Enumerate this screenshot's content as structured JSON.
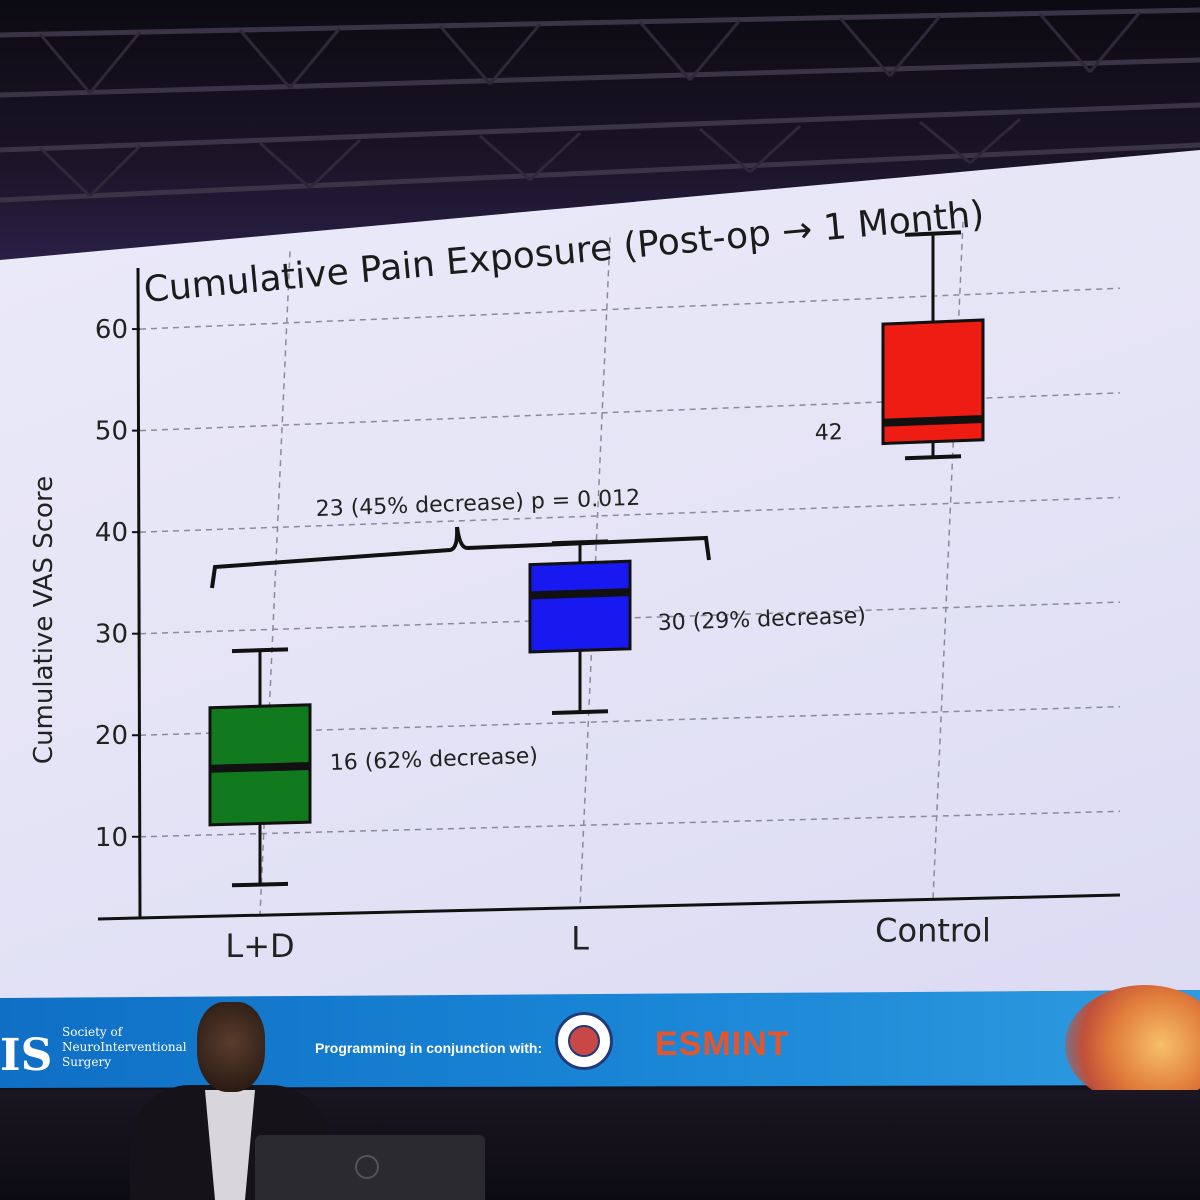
{
  "chart_data": {
    "type": "box",
    "title": "Cumulative Pain Exposure (Post-op → 1 Month)",
    "ylabel": "Cumulative VAS Score",
    "xlabel": "",
    "ylim": [
      2,
      67
    ],
    "yticks": [
      10,
      20,
      30,
      40,
      50,
      60
    ],
    "grid": true,
    "categories": [
      "L+D",
      "L",
      "Control"
    ],
    "boxes": [
      {
        "category": "L+D",
        "whisker_low": 5,
        "q1": 11,
        "median": 16.5,
        "q3": 22.5,
        "whisker_high": 28,
        "color": "#127a1e",
        "annotation": "16 (62% decrease)"
      },
      {
        "category": "L",
        "whisker_low": 21,
        "q1": 27,
        "median": 32.5,
        "q3": 35.5,
        "whisker_high": 37.5,
        "color": "#1818f0",
        "annotation": "30 (29% decrease)"
      },
      {
        "category": "Control",
        "whisker_low": 44.5,
        "q1": 46,
        "median": 48,
        "q3": 57.5,
        "whisker_high": 66,
        "color": "#ee1c12",
        "annotation": "42"
      }
    ],
    "comparison": {
      "between": [
        "L+D",
        "L"
      ],
      "label": "23 (45% decrease) p = 0.012"
    }
  },
  "footer": {
    "logo": "IS",
    "org_line1": "Society of",
    "org_line2": "NeuroInterventional",
    "org_line3": "Surgery",
    "programming": "Programming in conjunction with:",
    "esmint": "ESMINT"
  }
}
